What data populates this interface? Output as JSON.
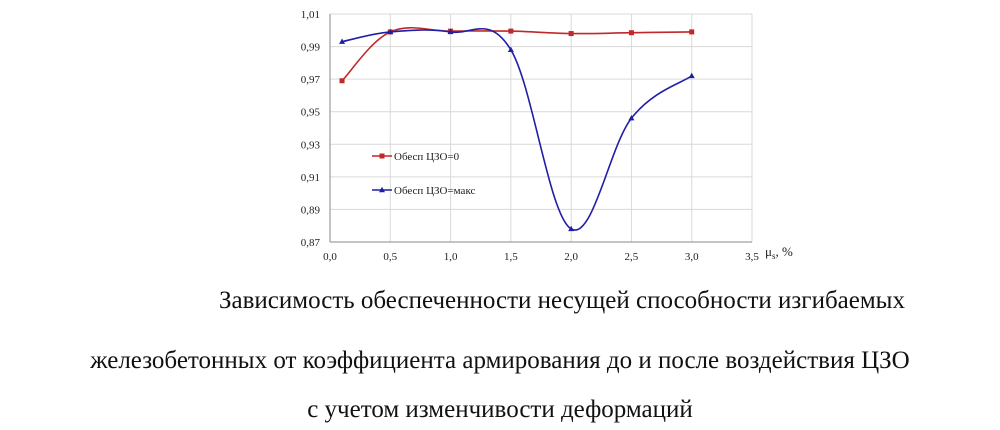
{
  "chart_data": {
    "type": "line",
    "x_unit_label": "μ",
    "x_unit_sub": "s",
    "x_unit_suffix": ", %",
    "xlim": [
      0,
      3.5
    ],
    "ylim": [
      0.87,
      1.01
    ],
    "x_ticks": [
      "0,0",
      "0,5",
      "1,0",
      "1,5",
      "2,0",
      "2,5",
      "3,0",
      "3,5"
    ],
    "y_ticks": [
      "0,87",
      "0,89",
      "0,91",
      "0,93",
      "0,95",
      "0,97",
      "0,99",
      "1,01"
    ],
    "grid": true,
    "legend_placement": "center-left",
    "series": [
      {
        "name": "Обесп ЦЗО=0",
        "color": "#c0282a",
        "marker": "square",
        "x": [
          0.1,
          0.5,
          1.0,
          1.5,
          2.0,
          2.5,
          3.0
        ],
        "y": [
          0.969,
          0.999,
          0.9995,
          0.9995,
          0.998,
          0.9985,
          0.999
        ]
      },
      {
        "name": "Обесп ЦЗО=макс",
        "color": "#1f1fa6",
        "marker": "triangle",
        "x": [
          0.1,
          0.5,
          1.0,
          1.5,
          2.0,
          2.5,
          3.0
        ],
        "y": [
          0.993,
          0.999,
          0.999,
          0.988,
          0.878,
          0.946,
          0.972
        ]
      }
    ]
  },
  "caption": {
    "line1": "Зависимость обеспеченности несущей способности изгибаемых",
    "line2": "железобетонных от коэффициента армирования до и после воздействия ЦЗО",
    "line3": "с учетом изменчивости деформаций"
  }
}
